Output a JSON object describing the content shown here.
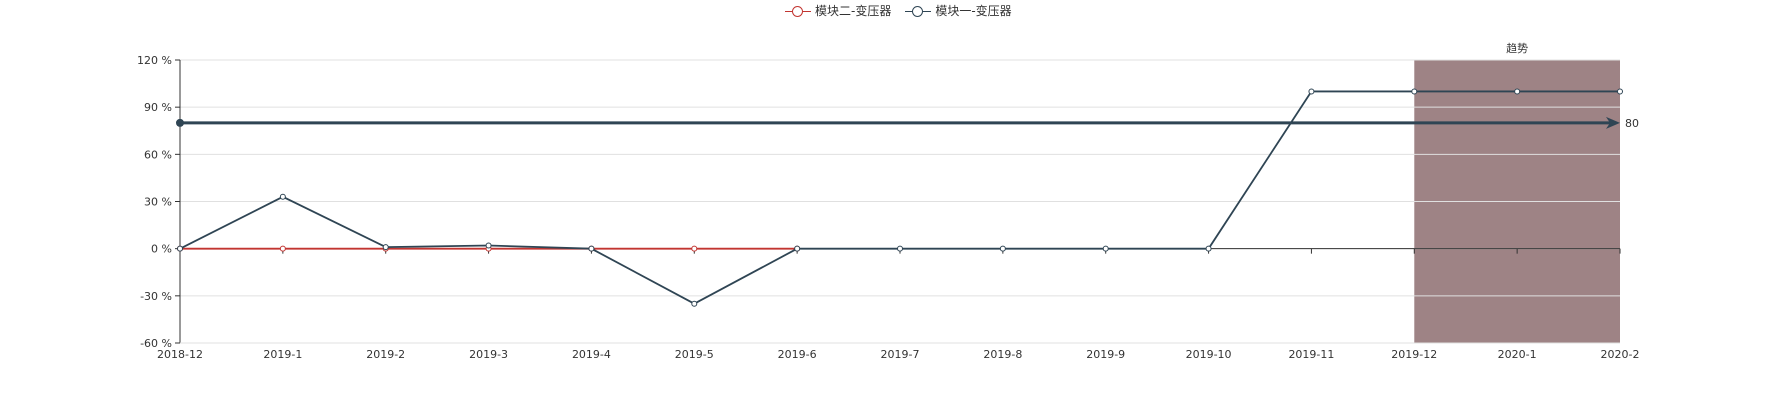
{
  "chart_data": {
    "type": "line",
    "categories": [
      "2018-12",
      "2019-1",
      "2019-2",
      "2019-3",
      "2019-4",
      "2019-5",
      "2019-6",
      "2019-7",
      "2019-8",
      "2019-9",
      "2019-10",
      "2019-11",
      "2019-12",
      "2020-1",
      "2020-2"
    ],
    "y_ticks": [
      "120 %",
      "90 %",
      "60 %",
      "30 %",
      "0 %",
      "-30 %",
      "-60 %"
    ],
    "ylim": [
      -60,
      120
    ],
    "grid": true,
    "legend_position": "top-center",
    "series": [
      {
        "name": "模块二-变压器",
        "color": "#c23531",
        "values": [
          0,
          0,
          0,
          0,
          0,
          0,
          0,
          null,
          null,
          null,
          null,
          null,
          null,
          null,
          null
        ]
      },
      {
        "name": "模块一-变压器",
        "color": "#2f4554",
        "values": [
          0,
          33,
          1,
          2,
          0,
          -35,
          0,
          0,
          0,
          0,
          0,
          100,
          100,
          100,
          100
        ]
      }
    ],
    "mark_line": {
      "value": 80,
      "label": "80",
      "color": "#2f4554"
    },
    "mark_area": {
      "from": "2019-12",
      "to": "2020-2",
      "label": "趋势",
      "color": "#9e8385"
    }
  }
}
